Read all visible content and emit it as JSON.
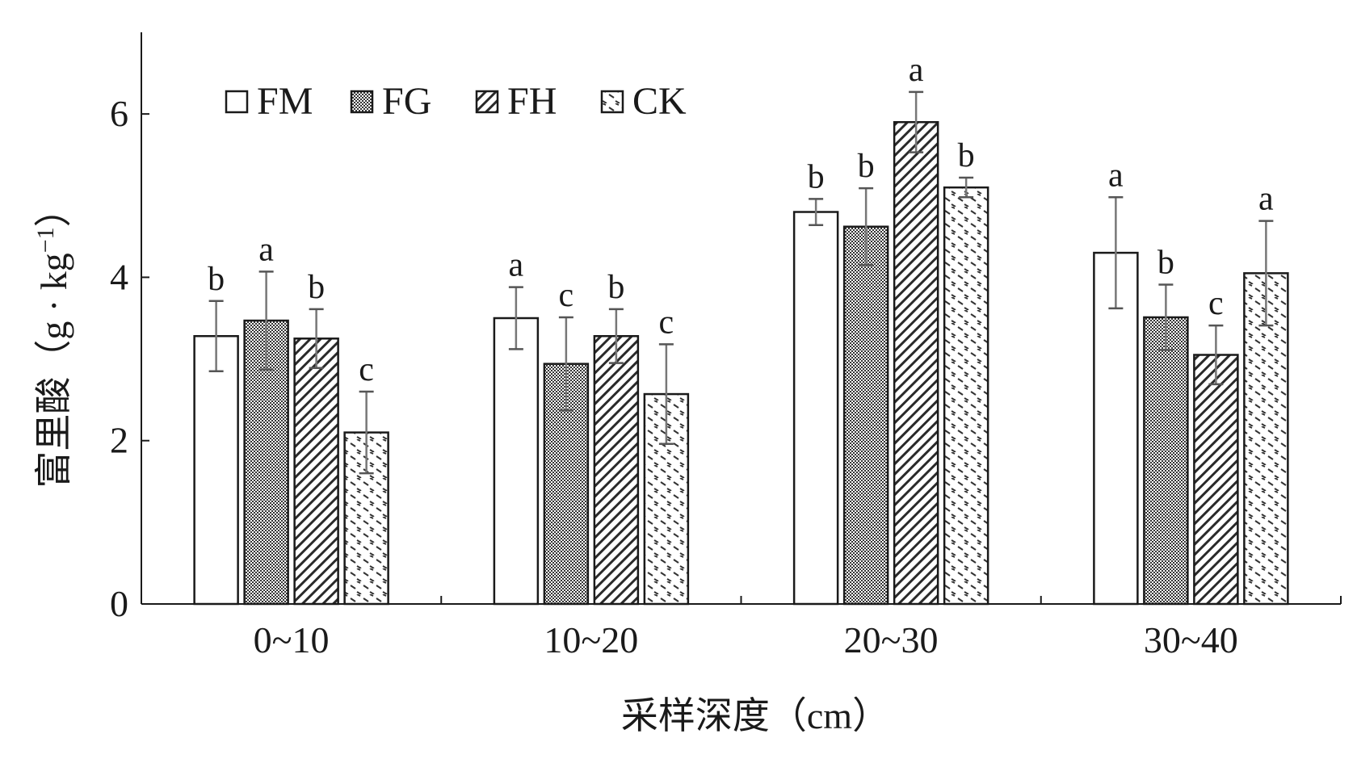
{
  "chart_data": {
    "type": "bar",
    "title": "",
    "xlabel": "采样深度（cm）",
    "ylabel": "富里酸（g·kg⁻¹）",
    "ylabel_parts": {
      "prefix": "富里酸（g · kg",
      "exp": "−1",
      "suffix": "）"
    },
    "ylim": [
      0,
      7
    ],
    "yticks": [
      "0",
      "2",
      "4",
      "6"
    ],
    "categories": [
      "0~10",
      "10~20",
      "20~30",
      "30~40"
    ],
    "legend_position": "top-left",
    "series": [
      {
        "name": "FM",
        "pattern": "empty",
        "values": [
          3.28,
          3.5,
          4.8,
          4.3
        ],
        "errors": [
          0.43,
          0.38,
          0.16,
          0.68
        ],
        "letters": [
          "b",
          "a",
          "b",
          "a"
        ]
      },
      {
        "name": "FG",
        "pattern": "dense-dots",
        "values": [
          3.47,
          2.94,
          4.62,
          3.51
        ],
        "errors": [
          0.6,
          0.57,
          0.47,
          0.4
        ],
        "letters": [
          "a",
          "c",
          "b",
          "b"
        ]
      },
      {
        "name": "FH",
        "pattern": "diagonal",
        "values": [
          3.25,
          3.28,
          5.9,
          3.05
        ],
        "errors": [
          0.36,
          0.33,
          0.37,
          0.36
        ],
        "letters": [
          "b",
          "b",
          "a",
          "c"
        ]
      },
      {
        "name": "CK",
        "pattern": "dashes",
        "values": [
          2.1,
          2.57,
          5.1,
          4.05
        ],
        "errors": [
          0.5,
          0.61,
          0.12,
          0.64
        ],
        "letters": [
          "c",
          "c",
          "b",
          "a"
        ]
      }
    ]
  }
}
